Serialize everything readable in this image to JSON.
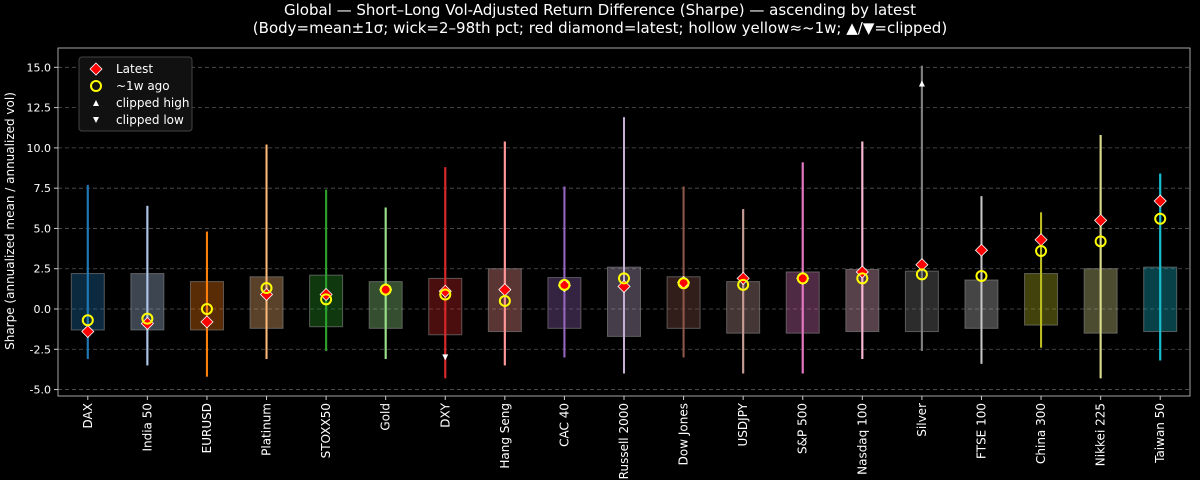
{
  "chart_data": {
    "type": "candlestick-range",
    "title": "Global — Short–Long Vol-Adjusted Return Difference (Sharpe) — ascending by latest",
    "subtitle": "(Body=mean±1σ; wick=2–98th pct; red diamond=latest; hollow yellow≈~1w; ▲/▼=clipped)",
    "ylabel": "Sharpe (annualized mean / annualized vol)",
    "xlabel": "",
    "ylim": [
      -5.4,
      16.2
    ],
    "yticks": [
      -5.0,
      -2.5,
      0.0,
      2.5,
      5.0,
      7.5,
      10.0,
      12.5,
      15.0
    ],
    "grid": true,
    "legend": {
      "placement": "top-left",
      "entries": [
        "Latest",
        "~1w ago",
        "clipped high",
        "clipped low"
      ]
    },
    "categories": [
      "DAX",
      "India 50",
      "EURUSD",
      "Platinum",
      "STOXX50",
      "Gold",
      "DXY",
      "Hang Seng",
      "CAC 40",
      "Russell 2000",
      "Dow Jones",
      "USDJPY",
      "S&P 500",
      "Nasdaq 100",
      "Silver",
      "FTSE 100",
      "China 300",
      "Nikkei 225",
      "Taiwan 50"
    ],
    "colors": [
      "#1f77b4",
      "#aec7e8",
      "#ff7f0e",
      "#ffbb78",
      "#2ca02c",
      "#98df8a",
      "#d62728",
      "#ff9896",
      "#9467bd",
      "#c5b0d5",
      "#8c564b",
      "#c49c94",
      "#e377c2",
      "#f7b6d2",
      "#7f7f7f",
      "#c7c7c7",
      "#bcbd22",
      "#dbdb8d",
      "#17becf"
    ],
    "body_high": [
      2.2,
      2.2,
      1.7,
      2.0,
      2.1,
      1.7,
      1.9,
      2.5,
      1.95,
      2.6,
      2.0,
      1.7,
      2.3,
      2.45,
      2.35,
      1.8,
      2.2,
      2.5,
      2.6
    ],
    "body_low": [
      -1.3,
      -1.3,
      -1.3,
      -1.2,
      -1.1,
      -1.2,
      -1.6,
      -1.4,
      -1.2,
      -1.7,
      -1.2,
      -1.5,
      -1.5,
      -1.4,
      -1.4,
      -1.2,
      -1.0,
      -1.5,
      -1.4
    ],
    "wick_high": [
      7.7,
      6.4,
      4.8,
      10.2,
      7.4,
      6.3,
      8.8,
      10.4,
      7.6,
      11.9,
      7.6,
      6.2,
      9.1,
      10.4,
      15.1,
      7.0,
      6.0,
      10.8,
      8.4
    ],
    "wick_low": [
      -3.1,
      -3.5,
      -4.2,
      -3.1,
      -2.6,
      -3.1,
      -4.3,
      -3.5,
      -3.0,
      -4.0,
      -3.0,
      -4.0,
      -4.0,
      -3.1,
      -2.6,
      -3.4,
      -2.4,
      -4.3,
      -3.2
    ],
    "latest": [
      -1.4,
      -0.9,
      -0.8,
      0.9,
      0.9,
      1.2,
      1.1,
      1.2,
      1.45,
      1.4,
      1.65,
      1.9,
      1.9,
      2.3,
      2.75,
      3.65,
      4.3,
      5.5,
      6.7
    ],
    "week_ago": [
      -0.7,
      -0.6,
      0.0,
      1.3,
      0.6,
      1.2,
      0.9,
      0.5,
      1.5,
      1.9,
      1.6,
      1.5,
      1.9,
      1.9,
      2.15,
      2.05,
      3.6,
      4.2,
      5.6
    ],
    "clipped_high": [
      null,
      null,
      null,
      null,
      null,
      null,
      null,
      null,
      null,
      null,
      null,
      null,
      null,
      null,
      14.0,
      null,
      null,
      null,
      null
    ],
    "clipped_low": [
      null,
      null,
      null,
      null,
      null,
      null,
      -3.0,
      null,
      null,
      null,
      null,
      null,
      null,
      null,
      null,
      null,
      null,
      null,
      null
    ],
    "latest_color": "#ff0000",
    "week_color": "#ffff00"
  }
}
